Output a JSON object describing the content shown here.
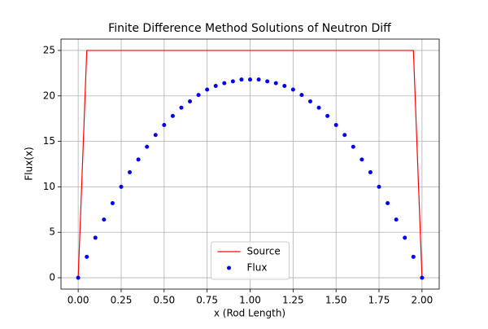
{
  "chart_data": {
    "type": "line_scatter",
    "title": "Finite Difference Method Solutions of Neutron Diff",
    "xlabel": "x (Rod Length)",
    "ylabel": "Flux(x)",
    "x": [
      0,
      0.05,
      0.1,
      0.15,
      0.2,
      0.25,
      0.3,
      0.35,
      0.4,
      0.45,
      0.5,
      0.55,
      0.6,
      0.65,
      0.7,
      0.75,
      0.8,
      0.85,
      0.9,
      0.95,
      1.0,
      1.05,
      1.1,
      1.15,
      1.2,
      1.25,
      1.3,
      1.35,
      1.4,
      1.45,
      1.5,
      1.55,
      1.6,
      1.65,
      1.7,
      1.75,
      1.8,
      1.85,
      1.9,
      1.95,
      2.0
    ],
    "series": [
      {
        "name": "Source",
        "kind": "line",
        "color": "#ff0000",
        "values": [
          0,
          25,
          25,
          25,
          25,
          25,
          25,
          25,
          25,
          25,
          25,
          25,
          25,
          25,
          25,
          25,
          25,
          25,
          25,
          25,
          25,
          25,
          25,
          25,
          25,
          25,
          25,
          25,
          25,
          25,
          25,
          25,
          25,
          25,
          25,
          25,
          25,
          25,
          25,
          25,
          0
        ]
      },
      {
        "name": "Flux",
        "kind": "scatter",
        "color": "#0000ff",
        "values": [
          0,
          2.3,
          4.4,
          6.4,
          8.2,
          10.0,
          11.6,
          13.0,
          14.4,
          15.7,
          16.8,
          17.8,
          18.7,
          19.4,
          20.1,
          20.7,
          21.1,
          21.4,
          21.6,
          21.8,
          21.8,
          21.8,
          21.6,
          21.4,
          21.1,
          20.7,
          20.1,
          19.4,
          18.7,
          17.8,
          16.8,
          15.7,
          14.4,
          13.0,
          11.6,
          10.0,
          8.2,
          6.4,
          4.4,
          2.3,
          0
        ]
      }
    ],
    "xlim": [
      -0.1,
      2.1
    ],
    "xticks": [
      {
        "value": 0,
        "label": "0.00"
      },
      {
        "value": 0.25,
        "label": "0.25"
      },
      {
        "value": 0.5,
        "label": "0.50"
      },
      {
        "value": 0.75,
        "label": "0.75"
      },
      {
        "value": 1,
        "label": "1.00"
      },
      {
        "value": 1.25,
        "label": "1.25"
      },
      {
        "value": 1.5,
        "label": "1.50"
      },
      {
        "value": 1.75,
        "label": "1.75"
      },
      {
        "value": 2,
        "label": "2.00"
      }
    ],
    "ylim": [
      -1.25,
      26.25
    ],
    "yticks": [
      0,
      5,
      10,
      15,
      20,
      25
    ],
    "grid": true,
    "legend": "lower center"
  }
}
